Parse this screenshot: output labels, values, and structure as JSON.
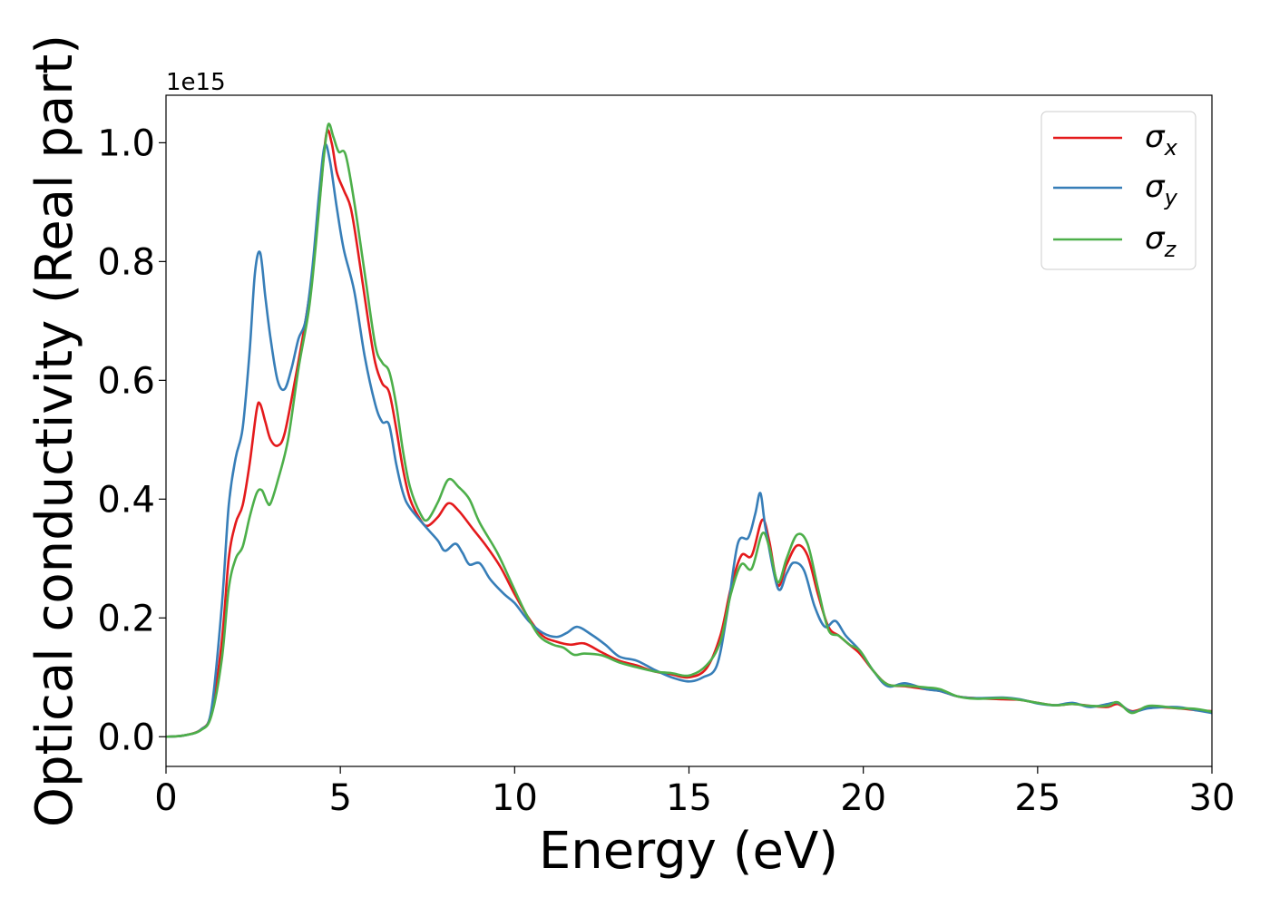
{
  "chart_data": {
    "type": "line",
    "title": "",
    "xlabel": "Energy (eV)",
    "ylabel": "Optical conductivity (Real part)",
    "y_offset_text": "1e15",
    "y_multiplier": 1000000000000000.0,
    "xlim": [
      0,
      30
    ],
    "ylim": [
      -0.05,
      1.08
    ],
    "xticks": [
      0,
      5,
      10,
      15,
      20,
      25,
      30
    ],
    "xtick_labels": [
      "0",
      "5",
      "10",
      "15",
      "20",
      "25",
      "30"
    ],
    "yticks": [
      0.0,
      0.2,
      0.4,
      0.6,
      0.8,
      1.0
    ],
    "ytick_labels": [
      "0.0",
      "0.2",
      "0.4",
      "0.6",
      "0.8",
      "1.0"
    ],
    "grid": false,
    "legend_position": "top-right",
    "series": [
      {
        "name": "σx",
        "legend_symbol": "σ",
        "legend_subscript": "x",
        "color": "#e41a1c",
        "points": [
          [
            0,
            0
          ],
          [
            0.5,
            0.002
          ],
          [
            1.0,
            0.012
          ],
          [
            1.3,
            0.04
          ],
          [
            1.6,
            0.16
          ],
          [
            1.8,
            0.3
          ],
          [
            2.0,
            0.36
          ],
          [
            2.2,
            0.39
          ],
          [
            2.4,
            0.46
          ],
          [
            2.6,
            0.55
          ],
          [
            2.7,
            0.56
          ],
          [
            2.85,
            0.53
          ],
          [
            3.0,
            0.5
          ],
          [
            3.2,
            0.49
          ],
          [
            3.4,
            0.51
          ],
          [
            3.7,
            0.6
          ],
          [
            4.0,
            0.7
          ],
          [
            4.2,
            0.78
          ],
          [
            4.4,
            0.9
          ],
          [
            4.6,
            1.015
          ],
          [
            4.75,
            1.0
          ],
          [
            4.9,
            0.95
          ],
          [
            5.1,
            0.92
          ],
          [
            5.3,
            0.89
          ],
          [
            5.5,
            0.82
          ],
          [
            5.8,
            0.7
          ],
          [
            6.0,
            0.63
          ],
          [
            6.2,
            0.595
          ],
          [
            6.4,
            0.58
          ],
          [
            6.6,
            0.52
          ],
          [
            6.8,
            0.45
          ],
          [
            7.0,
            0.4
          ],
          [
            7.3,
            0.365
          ],
          [
            7.5,
            0.355
          ],
          [
            7.8,
            0.37
          ],
          [
            8.1,
            0.393
          ],
          [
            8.4,
            0.38
          ],
          [
            8.8,
            0.35
          ],
          [
            9.2,
            0.32
          ],
          [
            9.6,
            0.285
          ],
          [
            10.0,
            0.24
          ],
          [
            10.4,
            0.2
          ],
          [
            10.8,
            0.17
          ],
          [
            11.2,
            0.16
          ],
          [
            11.6,
            0.155
          ],
          [
            12.0,
            0.157
          ],
          [
            12.5,
            0.142
          ],
          [
            13.0,
            0.128
          ],
          [
            13.5,
            0.12
          ],
          [
            14.0,
            0.11
          ],
          [
            14.5,
            0.105
          ],
          [
            15.0,
            0.1
          ],
          [
            15.5,
            0.115
          ],
          [
            15.9,
            0.17
          ],
          [
            16.2,
            0.25
          ],
          [
            16.5,
            0.305
          ],
          [
            16.8,
            0.305
          ],
          [
            17.1,
            0.365
          ],
          [
            17.3,
            0.33
          ],
          [
            17.55,
            0.255
          ],
          [
            17.8,
            0.29
          ],
          [
            18.1,
            0.322
          ],
          [
            18.4,
            0.305
          ],
          [
            18.7,
            0.24
          ],
          [
            19.0,
            0.185
          ],
          [
            19.3,
            0.17
          ],
          [
            19.6,
            0.155
          ],
          [
            19.9,
            0.14
          ],
          [
            20.3,
            0.11
          ],
          [
            20.7,
            0.088
          ],
          [
            21.2,
            0.085
          ],
          [
            21.8,
            0.08
          ],
          [
            22.2,
            0.077
          ],
          [
            22.7,
            0.068
          ],
          [
            23.2,
            0.065
          ],
          [
            24.0,
            0.063
          ],
          [
            24.5,
            0.062
          ],
          [
            25.0,
            0.057
          ],
          [
            25.5,
            0.053
          ],
          [
            26.0,
            0.055
          ],
          [
            26.5,
            0.052
          ],
          [
            27.0,
            0.05
          ],
          [
            27.3,
            0.055
          ],
          [
            27.7,
            0.043
          ],
          [
            28.2,
            0.05
          ],
          [
            29.0,
            0.048
          ],
          [
            29.5,
            0.045
          ],
          [
            30.0,
            0.043
          ]
        ]
      },
      {
        "name": "σy",
        "legend_symbol": "σ",
        "legend_subscript": "y",
        "color": "#377eb8",
        "points": [
          [
            0,
            0
          ],
          [
            0.5,
            0.002
          ],
          [
            1.0,
            0.012
          ],
          [
            1.3,
            0.045
          ],
          [
            1.6,
            0.22
          ],
          [
            1.8,
            0.39
          ],
          [
            2.0,
            0.47
          ],
          [
            2.2,
            0.52
          ],
          [
            2.4,
            0.65
          ],
          [
            2.55,
            0.78
          ],
          [
            2.7,
            0.815
          ],
          [
            2.85,
            0.74
          ],
          [
            3.0,
            0.67
          ],
          [
            3.2,
            0.6
          ],
          [
            3.4,
            0.585
          ],
          [
            3.6,
            0.62
          ],
          [
            3.8,
            0.67
          ],
          [
            4.0,
            0.7
          ],
          [
            4.2,
            0.79
          ],
          [
            4.4,
            0.92
          ],
          [
            4.55,
            0.995
          ],
          [
            4.7,
            0.97
          ],
          [
            4.9,
            0.89
          ],
          [
            5.1,
            0.82
          ],
          [
            5.4,
            0.75
          ],
          [
            5.7,
            0.64
          ],
          [
            6.0,
            0.56
          ],
          [
            6.2,
            0.53
          ],
          [
            6.4,
            0.525
          ],
          [
            6.6,
            0.46
          ],
          [
            6.8,
            0.41
          ],
          [
            7.0,
            0.385
          ],
          [
            7.5,
            0.35
          ],
          [
            7.8,
            0.33
          ],
          [
            8.0,
            0.313
          ],
          [
            8.3,
            0.325
          ],
          [
            8.5,
            0.31
          ],
          [
            8.7,
            0.29
          ],
          [
            9.0,
            0.292
          ],
          [
            9.3,
            0.265
          ],
          [
            9.7,
            0.24
          ],
          [
            10.0,
            0.225
          ],
          [
            10.4,
            0.195
          ],
          [
            10.8,
            0.175
          ],
          [
            11.2,
            0.168
          ],
          [
            11.5,
            0.175
          ],
          [
            11.8,
            0.185
          ],
          [
            12.2,
            0.172
          ],
          [
            12.6,
            0.155
          ],
          [
            13.0,
            0.135
          ],
          [
            13.5,
            0.128
          ],
          [
            14.0,
            0.113
          ],
          [
            14.5,
            0.1
          ],
          [
            15.0,
            0.093
          ],
          [
            15.4,
            0.1
          ],
          [
            15.8,
            0.12
          ],
          [
            16.1,
            0.21
          ],
          [
            16.4,
            0.325
          ],
          [
            16.7,
            0.335
          ],
          [
            16.9,
            0.375
          ],
          [
            17.05,
            0.41
          ],
          [
            17.2,
            0.35
          ],
          [
            17.55,
            0.25
          ],
          [
            17.8,
            0.275
          ],
          [
            18.0,
            0.293
          ],
          [
            18.3,
            0.28
          ],
          [
            18.6,
            0.22
          ],
          [
            18.9,
            0.185
          ],
          [
            19.2,
            0.195
          ],
          [
            19.5,
            0.17
          ],
          [
            19.9,
            0.145
          ],
          [
            20.3,
            0.11
          ],
          [
            20.7,
            0.085
          ],
          [
            21.2,
            0.09
          ],
          [
            21.8,
            0.08
          ],
          [
            22.2,
            0.077
          ],
          [
            22.7,
            0.068
          ],
          [
            23.2,
            0.065
          ],
          [
            24.0,
            0.066
          ],
          [
            24.5,
            0.063
          ],
          [
            25.0,
            0.056
          ],
          [
            25.5,
            0.053
          ],
          [
            26.0,
            0.057
          ],
          [
            26.5,
            0.05
          ],
          [
            27.0,
            0.055
          ],
          [
            27.3,
            0.057
          ],
          [
            27.7,
            0.042
          ],
          [
            28.2,
            0.048
          ],
          [
            29.0,
            0.05
          ],
          [
            29.5,
            0.045
          ],
          [
            30.0,
            0.04
          ]
        ]
      },
      {
        "name": "σz",
        "legend_symbol": "σ",
        "legend_subscript": "z",
        "color": "#4daf4a",
        "points": [
          [
            0,
            0
          ],
          [
            0.5,
            0.002
          ],
          [
            1.0,
            0.011
          ],
          [
            1.3,
            0.035
          ],
          [
            1.6,
            0.13
          ],
          [
            1.8,
            0.25
          ],
          [
            2.0,
            0.3
          ],
          [
            2.2,
            0.32
          ],
          [
            2.4,
            0.37
          ],
          [
            2.6,
            0.41
          ],
          [
            2.75,
            0.415
          ],
          [
            2.9,
            0.395
          ],
          [
            3.0,
            0.393
          ],
          [
            3.2,
            0.43
          ],
          [
            3.5,
            0.5
          ],
          [
            3.8,
            0.62
          ],
          [
            4.1,
            0.72
          ],
          [
            4.3,
            0.83
          ],
          [
            4.5,
            0.96
          ],
          [
            4.65,
            1.03
          ],
          [
            4.8,
            1.01
          ],
          [
            4.95,
            0.985
          ],
          [
            5.15,
            0.98
          ],
          [
            5.4,
            0.9
          ],
          [
            5.7,
            0.78
          ],
          [
            6.0,
            0.66
          ],
          [
            6.2,
            0.63
          ],
          [
            6.4,
            0.615
          ],
          [
            6.6,
            0.56
          ],
          [
            6.8,
            0.48
          ],
          [
            7.0,
            0.42
          ],
          [
            7.3,
            0.375
          ],
          [
            7.5,
            0.365
          ],
          [
            7.8,
            0.395
          ],
          [
            8.1,
            0.433
          ],
          [
            8.4,
            0.42
          ],
          [
            8.7,
            0.4
          ],
          [
            9.0,
            0.36
          ],
          [
            9.5,
            0.31
          ],
          [
            9.9,
            0.26
          ],
          [
            10.3,
            0.21
          ],
          [
            10.7,
            0.17
          ],
          [
            11.1,
            0.155
          ],
          [
            11.4,
            0.15
          ],
          [
            11.7,
            0.138
          ],
          [
            12.0,
            0.14
          ],
          [
            12.5,
            0.137
          ],
          [
            13.0,
            0.125
          ],
          [
            13.5,
            0.117
          ],
          [
            14.0,
            0.11
          ],
          [
            14.5,
            0.107
          ],
          [
            15.0,
            0.103
          ],
          [
            15.5,
            0.12
          ],
          [
            15.9,
            0.16
          ],
          [
            16.2,
            0.24
          ],
          [
            16.5,
            0.29
          ],
          [
            16.8,
            0.283
          ],
          [
            17.1,
            0.342
          ],
          [
            17.3,
            0.32
          ],
          [
            17.55,
            0.26
          ],
          [
            17.8,
            0.3
          ],
          [
            18.1,
            0.34
          ],
          [
            18.4,
            0.325
          ],
          [
            18.7,
            0.25
          ],
          [
            19.0,
            0.18
          ],
          [
            19.3,
            0.17
          ],
          [
            19.6,
            0.155
          ],
          [
            19.9,
            0.145
          ],
          [
            20.3,
            0.11
          ],
          [
            20.7,
            0.088
          ],
          [
            21.2,
            0.086
          ],
          [
            21.8,
            0.083
          ],
          [
            22.2,
            0.08
          ],
          [
            22.7,
            0.068
          ],
          [
            23.2,
            0.064
          ],
          [
            24.0,
            0.065
          ],
          [
            24.5,
            0.062
          ],
          [
            25.0,
            0.057
          ],
          [
            25.5,
            0.053
          ],
          [
            26.0,
            0.055
          ],
          [
            26.5,
            0.052
          ],
          [
            27.0,
            0.052
          ],
          [
            27.3,
            0.058
          ],
          [
            27.7,
            0.04
          ],
          [
            28.2,
            0.052
          ],
          [
            29.0,
            0.048
          ],
          [
            29.5,
            0.047
          ],
          [
            30.0,
            0.042
          ]
        ]
      }
    ]
  }
}
